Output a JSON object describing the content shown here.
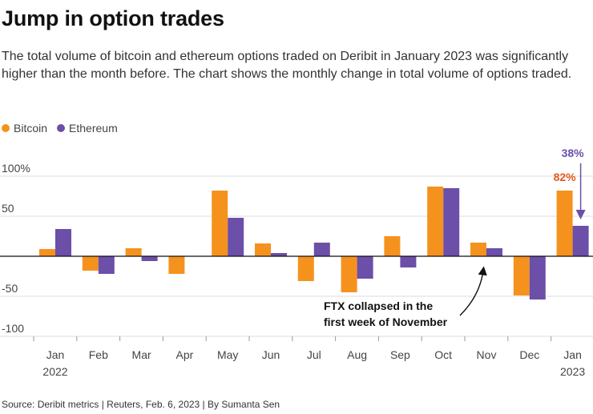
{
  "header": {
    "title": "Jump in option trades",
    "subtitle": "The total volume of bitcoin and ethereum options traded on Deribit in January 2023 was significantly higher than the month before. The chart shows the monthly change in total volume of options traded."
  },
  "footer": {
    "source": "Source: Deribit metrics | Reuters, Feb. 6, 2023 | By Sumanta Sen"
  },
  "colors": {
    "bitcoin": "#f5921e",
    "ethereum": "#6b4fa8",
    "grid": "#dddddd",
    "axis": "#111111"
  },
  "chart_data": {
    "type": "bar",
    "title": "Jump in option trades",
    "xlabel": "",
    "ylabel": "",
    "ylim": [
      -100,
      100
    ],
    "yticks": [
      100,
      50,
      0,
      -50,
      -100
    ],
    "ytick_labels": [
      "100%",
      "50",
      "",
      "-50",
      "-100"
    ],
    "categories": [
      "Jan",
      "Feb",
      "Mar",
      "Apr",
      "May",
      "Jun",
      "Jul",
      "Aug",
      "Sep",
      "Oct",
      "Nov",
      "Dec",
      "Jan"
    ],
    "year_labels": [
      "2022",
      "",
      "",
      "",
      "",
      "",
      "",
      "",
      "",
      "",
      "",
      "",
      "2023"
    ],
    "legend_position": "top-left",
    "series": [
      {
        "name": "Bitcoin",
        "color": "#f5921e",
        "values": [
          9,
          -18,
          10,
          -22,
          82,
          16,
          -31,
          -45,
          25,
          87,
          17,
          -49,
          82
        ]
      },
      {
        "name": "Ethereum",
        "color": "#6b4fa8",
        "values": [
          34,
          -22,
          -6,
          0,
          48,
          4,
          17,
          -28,
          -14,
          85,
          10,
          -54,
          38
        ]
      }
    ],
    "value_labels": [
      {
        "series": "Bitcoin",
        "index": 12,
        "text": "82%"
      },
      {
        "series": "Ethereum",
        "index": 12,
        "text": "38%"
      }
    ],
    "annotations": [
      {
        "text": [
          "FTX collapsed in the",
          "first week of November"
        ],
        "category_index": 10
      }
    ]
  }
}
